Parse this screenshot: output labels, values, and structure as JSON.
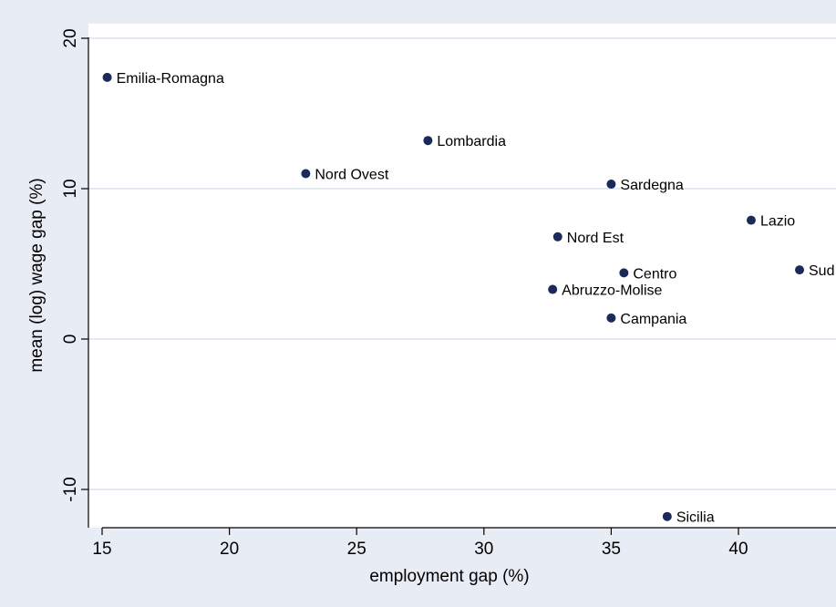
{
  "chart_data": {
    "type": "scatter",
    "title": "",
    "xlabel": "employment gap (%)",
    "ylabel": "mean (log) wage gap (%)",
    "xlim": [
      15,
      42.5
    ],
    "ylim": [
      -12.5,
      20.5
    ],
    "xticks": [
      15,
      20,
      25,
      30,
      35,
      40
    ],
    "yticks": [
      -10,
      0,
      10,
      20
    ],
    "grid": true,
    "colors": {
      "background": "#e8ecf4",
      "plot_area": "#ffffff",
      "gridline": "#dbe3ef",
      "marker": "#1a2a5a"
    },
    "points": [
      {
        "label": "Emilia-Romagna",
        "x": 15.2,
        "y": 17.4
      },
      {
        "label": "Lombardia",
        "x": 27.8,
        "y": 13.2
      },
      {
        "label": "Nord Ovest",
        "x": 23.0,
        "y": 11.0
      },
      {
        "label": "Sardegna",
        "x": 35.0,
        "y": 10.3
      },
      {
        "label": "Lazio",
        "x": 40.5,
        "y": 7.9
      },
      {
        "label": "Nord Est",
        "x": 32.9,
        "y": 6.8
      },
      {
        "label": "Sud",
        "x": 42.4,
        "y": 4.6
      },
      {
        "label": "Centro",
        "x": 35.5,
        "y": 4.4
      },
      {
        "label": "Abruzzo-Molise",
        "x": 32.7,
        "y": 3.3
      },
      {
        "label": "Campania",
        "x": 35.0,
        "y": 1.4
      },
      {
        "label": "Sicilia",
        "x": 37.2,
        "y": -11.8
      }
    ]
  }
}
